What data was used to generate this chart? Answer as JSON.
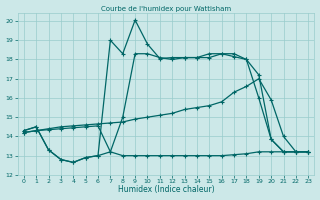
{
  "title": "Courbe de l'humidex pour Wattisham",
  "xlabel": "Humidex (Indice chaleur)",
  "bg_color": "#cce8e8",
  "grid_color": "#99cccc",
  "line_color": "#006666",
  "xlim": [
    -0.5,
    23.5
  ],
  "ylim": [
    12,
    20.4
  ],
  "xticks": [
    0,
    1,
    2,
    3,
    4,
    5,
    6,
    7,
    8,
    9,
    10,
    11,
    12,
    13,
    14,
    15,
    16,
    17,
    18,
    19,
    20,
    21,
    22,
    23
  ],
  "yticks": [
    12,
    13,
    14,
    15,
    16,
    17,
    18,
    19,
    20
  ],
  "line1_x": [
    0,
    1,
    2,
    3,
    4,
    5,
    6,
    7,
    8,
    9,
    10,
    11,
    12,
    13,
    14,
    15,
    16,
    17,
    18,
    19,
    20,
    21,
    22,
    23
  ],
  "line1_y": [
    14.3,
    14.5,
    13.3,
    12.8,
    12.65,
    12.9,
    13.0,
    19.0,
    18.3,
    20.05,
    18.8,
    18.05,
    18.1,
    18.1,
    18.1,
    18.3,
    18.3,
    18.15,
    18.0,
    17.2,
    13.85,
    13.2,
    13.2,
    13.2
  ],
  "line2_x": [
    0,
    1,
    2,
    3,
    4,
    5,
    6,
    7,
    8,
    9,
    10,
    11,
    12,
    13,
    14,
    15,
    16,
    17,
    18,
    19,
    20,
    21,
    22,
    23
  ],
  "line2_y": [
    14.3,
    14.5,
    13.3,
    12.8,
    12.65,
    12.9,
    13.0,
    13.2,
    15.0,
    18.3,
    18.3,
    18.1,
    18.0,
    18.1,
    18.1,
    18.1,
    18.3,
    18.3,
    18.0,
    16.0,
    13.85,
    13.2,
    13.2,
    13.2
  ],
  "line3_x": [
    0,
    1,
    2,
    3,
    4,
    5,
    6,
    7,
    8,
    9,
    10,
    11,
    12,
    13,
    14,
    15,
    16,
    17,
    18,
    19,
    20,
    21,
    22,
    23
  ],
  "line3_y": [
    14.2,
    14.3,
    14.4,
    14.5,
    14.55,
    14.6,
    14.65,
    14.7,
    14.75,
    14.9,
    15.0,
    15.1,
    15.2,
    15.4,
    15.5,
    15.6,
    15.8,
    16.3,
    16.6,
    17.0,
    15.9,
    14.0,
    13.2,
    13.2
  ],
  "line4_x": [
    0,
    1,
    2,
    3,
    4,
    5,
    6,
    7,
    8,
    9,
    10,
    11,
    12,
    13,
    14,
    15,
    16,
    17,
    18,
    19,
    20,
    21,
    22,
    23
  ],
  "line4_y": [
    14.2,
    14.3,
    14.35,
    14.4,
    14.45,
    14.5,
    14.55,
    13.2,
    13.0,
    13.0,
    13.0,
    13.0,
    13.0,
    13.0,
    13.0,
    13.0,
    13.0,
    13.05,
    13.1,
    13.2,
    13.2,
    13.2,
    13.2,
    13.2
  ]
}
